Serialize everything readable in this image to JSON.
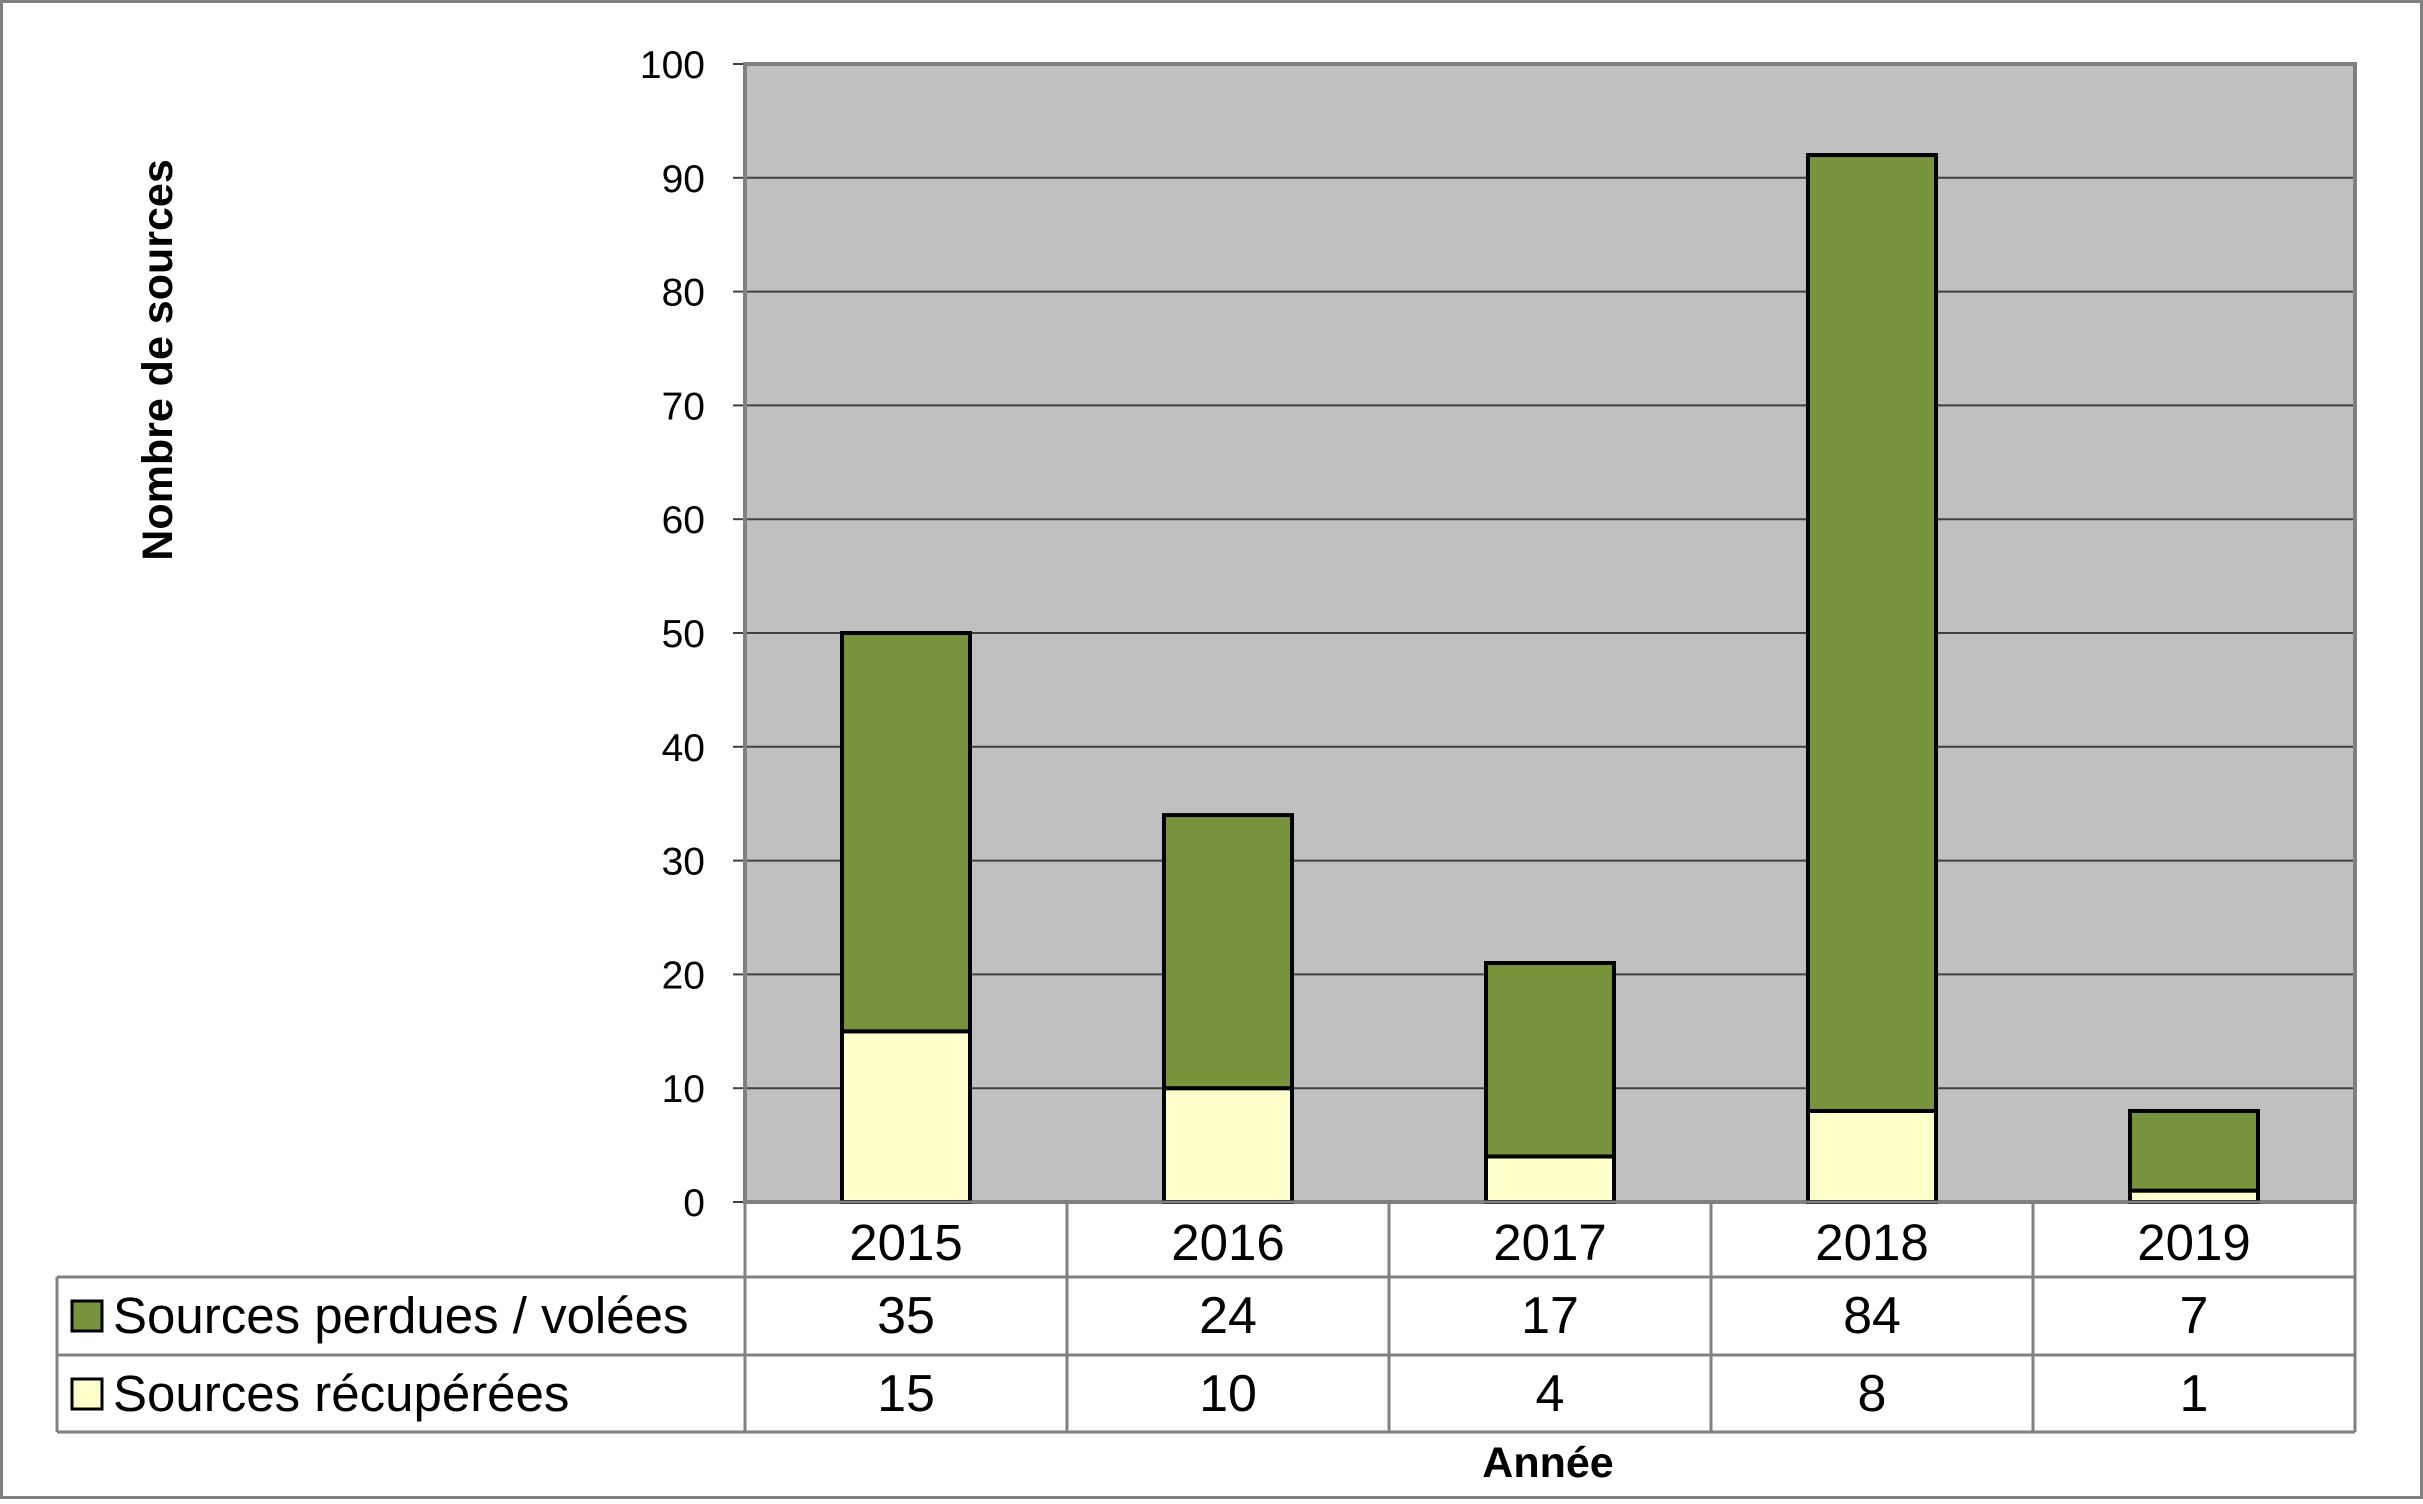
{
  "chart_data": {
    "type": "bar",
    "stacked": true,
    "categories": [
      "2015",
      "2016",
      "2017",
      "2018",
      "2019"
    ],
    "series": [
      {
        "name": "Sources récupérées",
        "values": [
          15,
          10,
          4,
          8,
          1
        ],
        "color": "#FFFFCC"
      },
      {
        "name": "Sources perdues / volées",
        "values": [
          35,
          24,
          17,
          84,
          7
        ],
        "color": "#77933C"
      }
    ],
    "table_rows": [
      {
        "name": "Sources perdues / volées",
        "values": [
          "35",
          "24",
          "17",
          "84",
          "7"
        ]
      },
      {
        "name": "Sources récupérées",
        "values": [
          "15",
          "10",
          "4",
          "8",
          "1"
        ]
      }
    ],
    "ylabel": "Nombre de sources",
    "xlabel": "Année",
    "ylim": [
      0,
      100
    ],
    "yticks": [
      "0",
      "10",
      "20",
      "30",
      "40",
      "50",
      "60",
      "70",
      "80",
      "90",
      "100"
    ],
    "grid": true,
    "legend": "data table (left of rows)",
    "plot_background": "#C0C0C0",
    "gridline_color": "#404040"
  }
}
